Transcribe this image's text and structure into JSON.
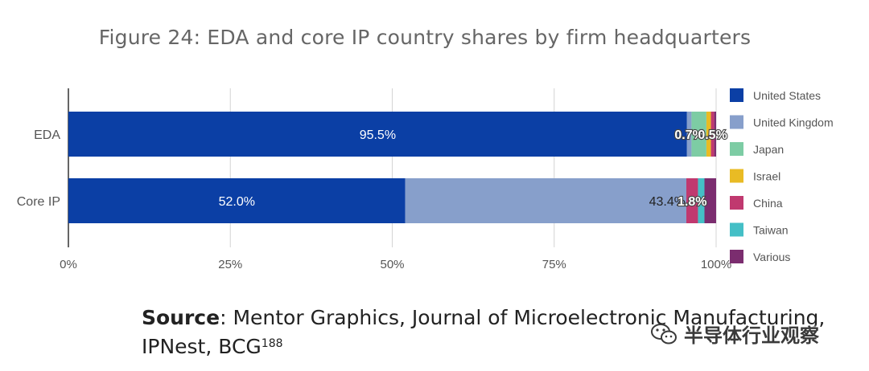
{
  "header": {
    "title": "Figure 24: EDA and core IP country shares by firm headquarters"
  },
  "chart_data": {
    "type": "bar",
    "orientation": "horizontal",
    "stacked": true,
    "categories": [
      "EDA",
      "Core IP"
    ],
    "series": [
      {
        "name": "United States",
        "color": "#0b3fa5",
        "values": [
          95.5,
          52.0
        ]
      },
      {
        "name": "United Kingdom",
        "color": "#879fcb",
        "values": [
          0.7,
          43.4
        ]
      },
      {
        "name": "Japan",
        "color": "#7dcca4",
        "values": [
          2.3,
          0.0
        ]
      },
      {
        "name": "Israel",
        "color": "#e9bb24",
        "values": [
          0.7,
          0.0
        ]
      },
      {
        "name": "China",
        "color": "#c0396f",
        "values": [
          0.5,
          1.8
        ]
      },
      {
        "name": "Taiwan",
        "color": "#44bfc6",
        "values": [
          0.0,
          1.0
        ]
      },
      {
        "name": "Various",
        "color": "#7b2d6f",
        "values": [
          0.3,
          1.8
        ]
      }
    ],
    "data_labels": [
      {
        "category": "EDA",
        "series": "United States",
        "text": "95.5%",
        "style": "white"
      },
      {
        "category": "EDA",
        "series": "United Kingdom",
        "text": "0.7%",
        "style": "outline"
      },
      {
        "category": "EDA",
        "series": "China",
        "text": "0.5%",
        "style": "outline"
      },
      {
        "category": "Core IP",
        "series": "United States",
        "text": "52.0%",
        "style": "white"
      },
      {
        "category": "Core IP",
        "series": "United Kingdom",
        "text": "43.4%",
        "style": "dark"
      },
      {
        "category": "Core IP",
        "series": "China",
        "text": "1.8%",
        "style": "outline"
      }
    ],
    "xlim": [
      0,
      100
    ],
    "xticks": [
      "0%",
      "25%",
      "50%",
      "75%",
      "100%"
    ],
    "grid": true,
    "legend_position": "right"
  },
  "source": {
    "label": "Source",
    "text": ": Mentor Graphics, Journal of Microelectronic Manufacturing, IPNest, BCG",
    "footnote": "188"
  },
  "watermark": {
    "text": "半导体行业观察",
    "icon": "wechat-icon"
  }
}
